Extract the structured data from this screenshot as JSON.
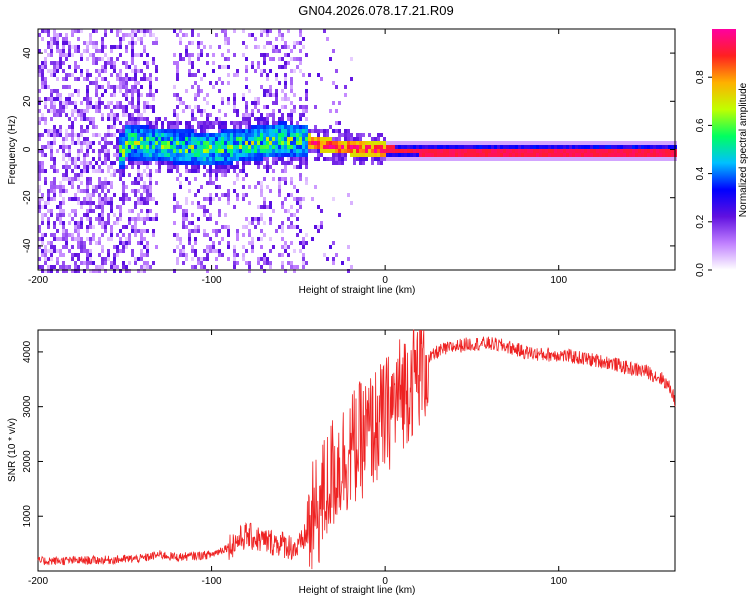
{
  "title": "GN04.2026.078.17.21.R09",
  "chart_data": [
    {
      "type": "heatmap",
      "title": "GN04.2026.078.17.21.R09",
      "xlabel": "Height of straight line (km)",
      "ylabel": "Frequency (Hz)",
      "xlim": [
        -200,
        167
      ],
      "ylim": [
        -50,
        50
      ],
      "xticks": [
        -200,
        -100,
        0,
        100
      ],
      "yticks": [
        -40,
        -20,
        0,
        20,
        40
      ],
      "colorbar": {
        "label": "Normalized spectral amplitude",
        "range": [
          0,
          1
        ],
        "ticks": [
          0.0,
          0.2,
          0.4,
          0.6,
          0.8
        ],
        "tick_labels": [
          "0.0",
          "0.2",
          "0.4",
          "0.6",
          "0.8"
        ],
        "colors": [
          "#ffffff",
          "#c080ff",
          "#6010e0",
          "#0000ff",
          "#00c0ff",
          "#00ff60",
          "#c0ff00",
          "#ffb000",
          "#ff2020",
          "#ff00a0"
        ]
      },
      "description_points": {
        "noise_region_x": [
          -200,
          -45
        ],
        "band_center_hz": [
          {
            "x": -150,
            "y": 4
          },
          {
            "x": -120,
            "y": 2
          },
          {
            "x": -100,
            "y": 1
          },
          {
            "x": -80,
            "y": 3
          },
          {
            "x": -60,
            "y": 5
          },
          {
            "x": -45,
            "y": 4
          },
          {
            "x": -30,
            "y": 2
          },
          {
            "x": -10,
            "y": 1
          },
          {
            "x": 0,
            "y": 0.5
          },
          {
            "x": 20,
            "y": 0
          },
          {
            "x": 100,
            "y": 0
          },
          {
            "x": 167,
            "y": 0
          }
        ]
      }
    },
    {
      "type": "line",
      "title": "",
      "xlabel": "Height of straight line (km)",
      "ylabel": "SNR (10 * v/v)",
      "xlim": [
        -200,
        167
      ],
      "ylim": [
        0,
        4400
      ],
      "xticks": [
        -200,
        -100,
        0,
        100
      ],
      "yticks": [
        1000,
        2000,
        3000,
        4000
      ],
      "series": [
        {
          "name": "SNR",
          "color": "#ee2222",
          "x": [
            -200,
            -180,
            -160,
            -140,
            -130,
            -120,
            -100,
            -90,
            -80,
            -70,
            -60,
            -50,
            -40,
            -30,
            -20,
            -10,
            0,
            10,
            20,
            30,
            40,
            50,
            60,
            70,
            80,
            90,
            100,
            110,
            120,
            130,
            140,
            150,
            160,
            165,
            167
          ],
          "y": [
            180,
            190,
            200,
            230,
            300,
            250,
            300,
            450,
            650,
            550,
            500,
            400,
            1000,
            1800,
            2200,
            2500,
            2800,
            3300,
            3700,
            4000,
            4100,
            4150,
            4150,
            4100,
            4000,
            3950,
            3950,
            3900,
            3850,
            3800,
            3700,
            3650,
            3500,
            3300,
            3100
          ]
        }
      ]
    }
  ]
}
